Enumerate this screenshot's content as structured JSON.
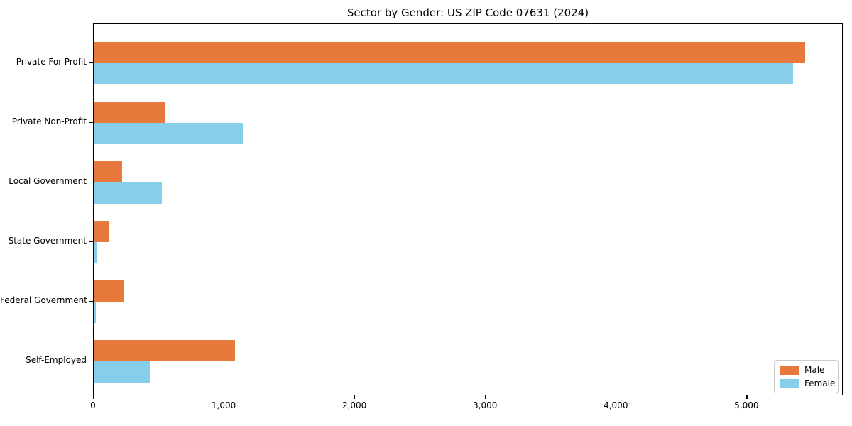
{
  "chart_data": {
    "type": "bar",
    "orientation": "horizontal",
    "title": "Sector by Gender: US ZIP Code 07631 (2024)",
    "categories": [
      "Private For-Profit",
      "Private Non-Profit",
      "Local Government",
      "State Government",
      "Federal Government",
      "Self-Employed"
    ],
    "series": [
      {
        "name": "Male",
        "color": "#e8793d",
        "values": [
          5444,
          542,
          217,
          119,
          228,
          1079
        ]
      },
      {
        "name": "Female",
        "color": "#87ceeb",
        "values": [
          5352,
          1139,
          521,
          27,
          16,
          428
        ]
      }
    ],
    "xlim": [
      0,
      5726
    ],
    "x_ticks": [
      0,
      1000,
      2000,
      3000,
      4000,
      5000
    ],
    "x_tick_labels": [
      "0",
      "1,000",
      "2,000",
      "3,000",
      "4,000",
      "5,000"
    ],
    "xlabel": "",
    "ylabel": "",
    "grid": false,
    "legend": {
      "position": "lower right",
      "entries": [
        "Male",
        "Female"
      ]
    }
  }
}
